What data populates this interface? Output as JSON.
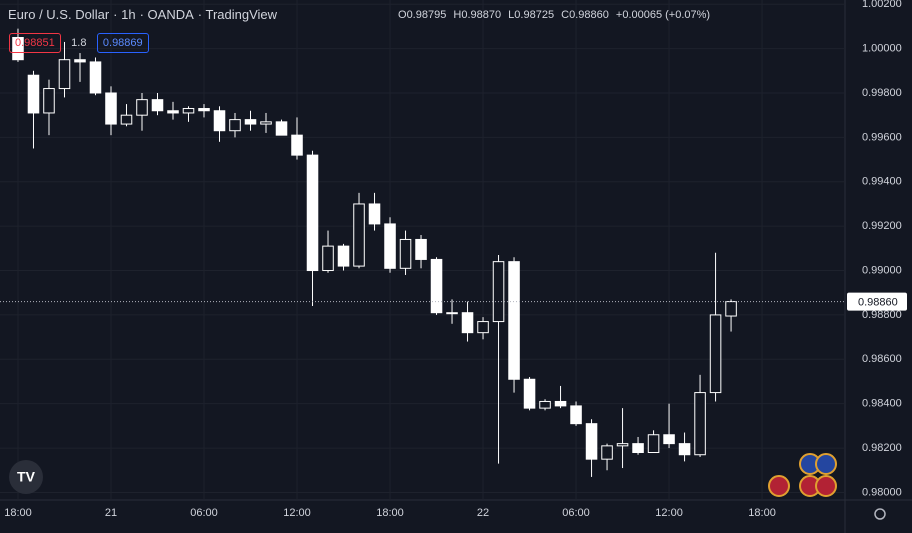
{
  "header": {
    "symbol": "Euro / U.S. Dollar",
    "interval": "1h",
    "exchange": "OANDA",
    "source": "TradingView",
    "ohlc": [
      {
        "label": "O",
        "value": "0.98795"
      },
      {
        "label": "H",
        "value": "0.98870"
      },
      {
        "label": "L",
        "value": "0.98725"
      },
      {
        "label": "C",
        "value": "0.98860"
      }
    ],
    "change": "+0.00065 (+0.07%)",
    "sell": "0.98851",
    "spread": "1.8",
    "buy": "0.98869"
  },
  "chart_data": {
    "type": "candlestick",
    "x": [
      0,
      1,
      2,
      3,
      4,
      5,
      6,
      7,
      8,
      9,
      10,
      11,
      12,
      13,
      14,
      15,
      16,
      17,
      18,
      19,
      20,
      21,
      22,
      23,
      24,
      25,
      26,
      27,
      28,
      29,
      30,
      31,
      32,
      33,
      34,
      35,
      36,
      37,
      38,
      39,
      40,
      41,
      42,
      43,
      44,
      45,
      46
    ],
    "open": [
      1.0005,
      0.9988,
      0.9971,
      0.9982,
      0.9995,
      0.9994,
      0.998,
      0.9966,
      0.997,
      0.9977,
      0.9972,
      0.9971,
      0.9973,
      0.9972,
      0.9963,
      0.9968,
      0.9966,
      0.9967,
      0.9961,
      0.9952,
      0.99,
      0.9911,
      0.9902,
      0.993,
      0.9921,
      0.9901,
      0.9914,
      0.9905,
      0.9881,
      0.9881,
      0.9872,
      0.9877,
      0.9904,
      0.9851,
      0.9838,
      0.9841,
      0.9839,
      0.9831,
      0.9815,
      0.9821,
      0.9822,
      0.9818,
      0.9826,
      0.9822,
      0.9817,
      0.9845,
      0.98795
    ],
    "high": [
      1.0009,
      0.999,
      0.9986,
      1.0003,
      0.9998,
      0.9996,
      0.9983,
      0.9975,
      0.998,
      0.998,
      0.9976,
      0.9974,
      0.9975,
      0.9974,
      0.9971,
      0.9972,
      0.9971,
      0.9968,
      0.9969,
      0.9954,
      0.9918,
      0.9912,
      0.9935,
      0.9935,
      0.9924,
      0.9918,
      0.9916,
      0.9906,
      0.9887,
      0.9886,
      0.9879,
      0.9907,
      0.9906,
      0.9852,
      0.9842,
      0.9848,
      0.9841,
      0.9833,
      0.9822,
      0.9838,
      0.9825,
      0.9828,
      0.984,
      0.9827,
      0.9853,
      0.9908,
      0.9887
    ],
    "low": [
      0.9994,
      0.9955,
      0.9961,
      0.9978,
      0.9985,
      0.9979,
      0.9961,
      0.9965,
      0.9963,
      0.997,
      0.9968,
      0.9967,
      0.9969,
      0.9958,
      0.996,
      0.9963,
      0.9962,
      0.9961,
      0.995,
      0.9884,
      0.9899,
      0.99,
      0.9901,
      0.9918,
      0.9899,
      0.9898,
      0.9901,
      0.988,
      0.9876,
      0.9868,
      0.9869,
      0.9813,
      0.9845,
      0.9837,
      0.9837,
      0.9838,
      0.983,
      0.9807,
      0.981,
      0.9811,
      0.9817,
      0.9818,
      0.982,
      0.9814,
      0.9816,
      0.9841,
      0.98725
    ],
    "close": [
      0.9995,
      0.9971,
      0.9982,
      0.9995,
      0.9994,
      0.998,
      0.9966,
      0.997,
      0.9977,
      0.9972,
      0.9971,
      0.9973,
      0.9972,
      0.9963,
      0.9968,
      0.9966,
      0.9967,
      0.9961,
      0.9952,
      0.99,
      0.9911,
      0.9902,
      0.993,
      0.9921,
      0.9901,
      0.9914,
      0.9905,
      0.9881,
      0.9881,
      0.9872,
      0.9877,
      0.9904,
      0.9851,
      0.9838,
      0.9841,
      0.9839,
      0.9831,
      0.9815,
      0.9821,
      0.9822,
      0.9818,
      0.9826,
      0.9822,
      0.9817,
      0.9845,
      0.988,
      0.9886
    ],
    "up_color": "#131722",
    "down_color": "#ffffff",
    "wick_color": "#ffffff",
    "last_price": {
      "value": 0.9886,
      "label": "0.98860"
    },
    "xlim": [
      -1.16,
      53.35
    ],
    "xticks": [
      {
        "value": 0,
        "label": "18:00"
      },
      {
        "value": 6,
        "label": "21"
      },
      {
        "value": 12,
        "label": "06:00"
      },
      {
        "value": 18,
        "label": "12:00"
      },
      {
        "value": 24,
        "label": "18:00"
      },
      {
        "value": 30,
        "label": "22"
      },
      {
        "value": 36,
        "label": "06:00"
      },
      {
        "value": 42,
        "label": "12:00"
      },
      {
        "value": 48,
        "label": "18:00"
      }
    ],
    "ylim": [
      0.97966,
      1.00219
    ],
    "yticks": [
      {
        "value": 0.98,
        "label": "0.98000"
      },
      {
        "value": 0.982,
        "label": "0.98200"
      },
      {
        "value": 0.984,
        "label": "0.98400"
      },
      {
        "value": 0.986,
        "label": "0.98600"
      },
      {
        "value": 0.988,
        "label": "0.98800"
      },
      {
        "value": 0.99,
        "label": "0.99000"
      },
      {
        "value": 0.992,
        "label": "0.99200"
      },
      {
        "value": 0.994,
        "label": "0.99400"
      },
      {
        "value": 0.996,
        "label": "0.99600"
      },
      {
        "value": 0.998,
        "label": "0.99800"
      },
      {
        "value": 1,
        "label": "1.00000"
      },
      {
        "value": 1.002,
        "label": "1.00200"
      }
    ]
  }
}
